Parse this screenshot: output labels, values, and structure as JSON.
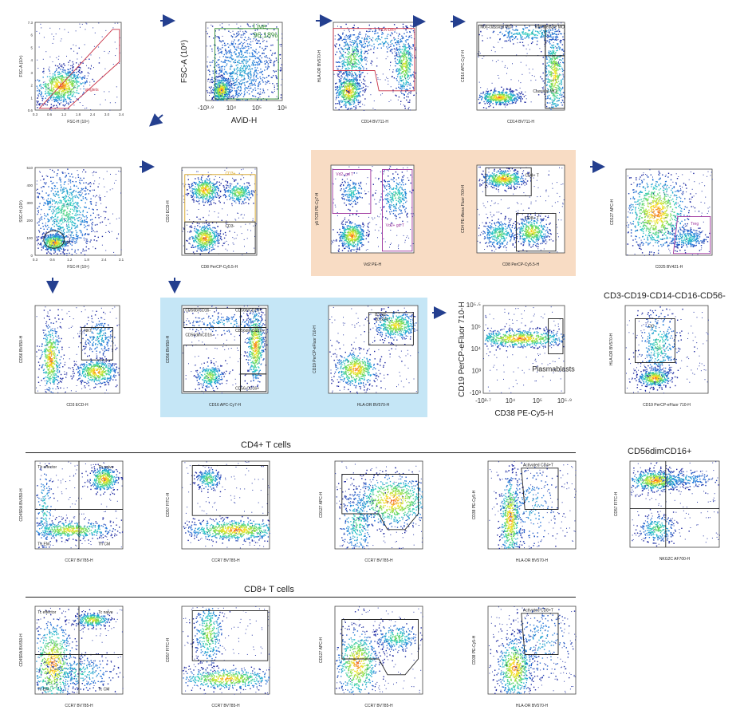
{
  "sections": {
    "cd4_title": "CD4+ T cells",
    "cd8_title": "CD8+ T cells",
    "neg_title": "CD3-CD19-CD14-CD16-CD56-",
    "nk_title": "CD56dimCD16+"
  },
  "chart_data": [
    {
      "type": "scatter",
      "id": "singlets",
      "xlabel": "FSC-H (10⁶)",
      "ylabel": "FSC-A (10⁶)",
      "xticks": [
        "0.3",
        "0.6",
        "1.2",
        "1.8",
        "2.4",
        "3.0",
        "3.4"
      ],
      "yticks": [
        "7.3",
        "6",
        "5",
        "4",
        "3",
        "2",
        "1",
        "0.6"
      ],
      "gates": [
        {
          "label": "singlets",
          "shape": "polygon",
          "color": "#c83246"
        }
      ]
    },
    {
      "type": "scatter",
      "id": "live",
      "xlabel": "AViD-H",
      "ylabel": "FSC-A (10⁶)",
      "xticks": [
        "-10³·⁹",
        "10⁴",
        "10⁵",
        "10⁶"
      ],
      "yticks": [],
      "gates": [
        {
          "label": "Live",
          "value": "96.18%",
          "shape": "rect",
          "color": "#2e8b2e"
        }
      ]
    },
    {
      "type": "scatter",
      "id": "hla-cd14",
      "xlabel": "CD14 BV711-H",
      "ylabel": "HLA-DR BV570-H",
      "gates": [
        {
          "label": "HLA-DR+",
          "shape": "polygon",
          "color": "#c83246"
        }
      ]
    },
    {
      "type": "scatter",
      "id": "mono",
      "xlabel": "CD14 BV711-H",
      "ylabel": "CD16 APC-Cy7-H",
      "gates": [
        {
          "label": "Non-classical MO",
          "shape": "rect"
        },
        {
          "label": "Intermediate MO",
          "shape": "rect"
        },
        {
          "label": "Classical MO",
          "shape": "rect"
        }
      ]
    },
    {
      "type": "scatter",
      "id": "lym",
      "xlabel": "FSC-H (10⁶)",
      "ylabel": "SSC-H (10³)",
      "xticks": [
        "0.3",
        "0.6",
        "1.2",
        "1.8",
        "2.4",
        "3.1"
      ],
      "yticks": [
        "510",
        "400",
        "300",
        "200",
        "100",
        "0"
      ],
      "gates": [
        {
          "label": "Lym",
          "shape": "ellipse"
        }
      ]
    },
    {
      "type": "scatter",
      "id": "cd3",
      "xlabel": "CD8 PerCP-Cy5.5-H",
      "ylabel": "CD3 ECD-H",
      "gates": [
        {
          "label": "CD3+",
          "shape": "rect",
          "color": "#d4a020"
        },
        {
          "label": "CD3-",
          "shape": "rect"
        }
      ]
    },
    {
      "type": "scatter",
      "id": "gdt",
      "xlabel": "Vd2 PE-H",
      "ylabel": "γδ TCR PE-Cy7-H",
      "gates": [
        {
          "label": "Vd2- gd T",
          "shape": "rect",
          "color": "#9b2e9b"
        },
        {
          "label": "Vd2+ gd T",
          "shape": "rect",
          "color": "#9b2e9b"
        }
      ]
    },
    {
      "type": "scatter",
      "id": "cd4cd8",
      "xlabel": "CD8 PerCP-Cy5.5-H",
      "ylabel": "CD4 PE-Alexa Fluor 700-H",
      "gates": [
        {
          "label": "CD4+ T",
          "shape": "rect"
        },
        {
          "label": "CD8+ T",
          "shape": "rect"
        }
      ]
    },
    {
      "type": "scatter",
      "id": "treg",
      "xlabel": "CD25 BV421-H",
      "ylabel": "CD127 APC-H",
      "gates": [
        {
          "label": "Treg",
          "shape": "polygon",
          "color": "#9b2e9b"
        }
      ]
    },
    {
      "type": "scatter",
      "id": "nkt",
      "xlabel": "CD3 ECD-H",
      "ylabel": "CD56 BV650-H",
      "gates": [
        {
          "label": "NKT",
          "shape": "rect"
        }
      ]
    },
    {
      "type": "scatter",
      "id": "nk",
      "xlabel": "CD16 APC-Cy7-H",
      "ylabel": "CD56 BV650-H",
      "gates": [
        {
          "label": "CD56brCD16-",
          "shape": "rect"
        },
        {
          "label": "CD56brCD16+",
          "shape": "rect"
        },
        {
          "label": "CD56dimCD16-",
          "shape": "rect"
        },
        {
          "label": "CD56dimCD16+",
          "shape": "rect"
        },
        {
          "label": "CD56-CD16+",
          "shape": "rect"
        }
      ]
    },
    {
      "type": "scatter",
      "id": "bcell",
      "xlabel": "HLA-DR BV570-H",
      "ylabel": "CD19 PerCP-eFluor 710-H",
      "gates": [
        {
          "label": "B Cell",
          "value": "20.63%",
          "shape": "rect"
        }
      ]
    },
    {
      "type": "scatter",
      "id": "plasmablast",
      "xlabel": "CD38 PE-Cy5-H",
      "ylabel": "CD19 PerCP-eFluor 710-H",
      "xticks": [
        "-10³·⁷",
        "10⁴",
        "10⁵",
        "10⁵·⁹"
      ],
      "yticks": [
        "10⁵·⁵",
        "10⁵",
        "10⁴",
        "10³",
        "-10³"
      ],
      "gates": [
        {
          "label": "Plasmablasts",
          "shape": "rect"
        }
      ]
    },
    {
      "type": "scatter",
      "id": "dc",
      "xlabel": "CD19 PerCP-eFluor 710-H",
      "ylabel": "HLA-DR BV570-H",
      "gates": [
        {
          "label": "DC",
          "shape": "rect"
        }
      ]
    },
    {
      "type": "scatter",
      "id": "cd4-mem",
      "xlabel": "CCR7 BV785-H",
      "ylabel": "CD45RA BV650-H",
      "gates": [
        {
          "label": "Th effector",
          "shape": "quad"
        },
        {
          "label": "Th naive",
          "shape": "quad"
        },
        {
          "label": "Th EM",
          "shape": "quad"
        },
        {
          "label": "Th CM",
          "shape": "quad"
        }
      ]
    },
    {
      "type": "scatter",
      "id": "cd4-cd57",
      "xlabel": "CCR7 BV785-H",
      "ylabel": "CD57 FITC-H",
      "gates": [
        {
          "label": "",
          "shape": "rect"
        }
      ]
    },
    {
      "type": "scatter",
      "id": "cd4-cd27",
      "xlabel": "CCR7 BV785-H",
      "ylabel": "CD127 APC-H",
      "gates": [
        {
          "label": "",
          "shape": "polygon"
        }
      ]
    },
    {
      "type": "scatter",
      "id": "cd4-act",
      "xlabel": "HLA-DR BV570-H",
      "ylabel": "CD38 PE-Cy5-H",
      "gates": [
        {
          "label": "Activated CD4+T",
          "shape": "polygon"
        }
      ]
    },
    {
      "type": "scatter",
      "id": "nk-sub",
      "xlabel": "NKG2C AF700-H",
      "ylabel": "CD57 FITC-H",
      "gates": [
        {
          "label": "",
          "shape": "quad"
        }
      ]
    },
    {
      "type": "scatter",
      "id": "cd8-mem",
      "xlabel": "CCR7 BV785-H",
      "ylabel": "CD45RA BV650-H",
      "gates": [
        {
          "label": "Tc effector",
          "shape": "quad"
        },
        {
          "label": "Tc naive",
          "shape": "quad"
        },
        {
          "label": "Tc EM",
          "shape": "quad"
        },
        {
          "label": "Tc CM",
          "shape": "quad"
        }
      ]
    },
    {
      "type": "scatter",
      "id": "cd8-cd57",
      "xlabel": "CCR7 BV785-H",
      "ylabel": "CD57 FITC-H",
      "gates": [
        {
          "label": "",
          "shape": "rect"
        }
      ]
    },
    {
      "type": "scatter",
      "id": "cd8-cd27",
      "xlabel": "CCR7 BV785-H",
      "ylabel": "CD127 APC-H",
      "gates": [
        {
          "label": "",
          "shape": "polygon"
        }
      ]
    },
    {
      "type": "scatter",
      "id": "cd8-act",
      "xlabel": "HLA-DR BV570-H",
      "ylabel": "CD38 PE-Cy5-H",
      "gates": [
        {
          "label": "Activated CD8+T",
          "shape": "polygon"
        }
      ]
    }
  ]
}
